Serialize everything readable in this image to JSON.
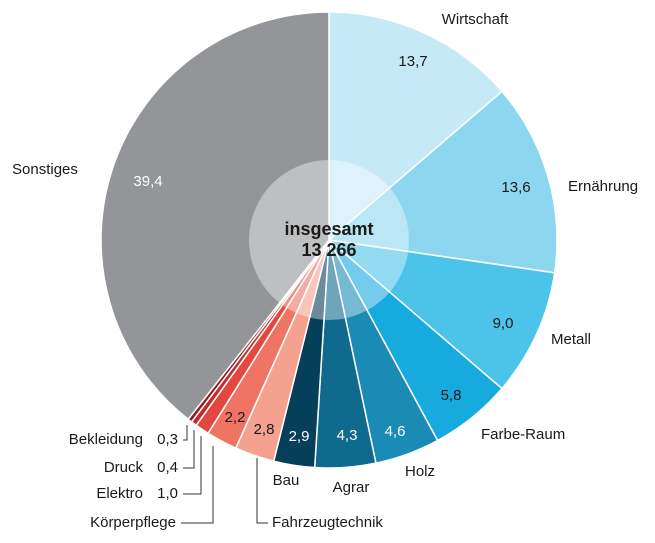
{
  "chart_data": {
    "type": "pie",
    "categories": [
      "Wirtschaft",
      "Ernährung",
      "Metall",
      "Farbe-Raum",
      "Holz",
      "Agrar",
      "Bau",
      "Fahrzeugtechnik",
      "Körperpflege",
      "Elektro",
      "Druck",
      "Bekleidung",
      "Sonstiges"
    ],
    "values": [
      13.7,
      13.6,
      9.0,
      5.8,
      4.6,
      4.3,
      2.9,
      2.8,
      2.2,
      1.0,
      0.4,
      0.3,
      39.4
    ],
    "value_labels": [
      "13,7",
      "13,6",
      "9,0",
      "5,8",
      "4,6",
      "4,3",
      "2,9",
      "2,8",
      "2,2",
      "1,0",
      "0,4",
      "0,3",
      "39,4"
    ],
    "colors": [
      "#c6e9f8",
      "#8dd6ef",
      "#4cc4ea",
      "#16aade",
      "#1a8bb4",
      "#0f6a8d",
      "#063f5a",
      "#f4a18f",
      "#ef7464",
      "#e2483d",
      "#c42a2b",
      "#8c1c1f",
      "#939598"
    ],
    "center_text": [
      "insgesamt",
      "13 266"
    ]
  }
}
